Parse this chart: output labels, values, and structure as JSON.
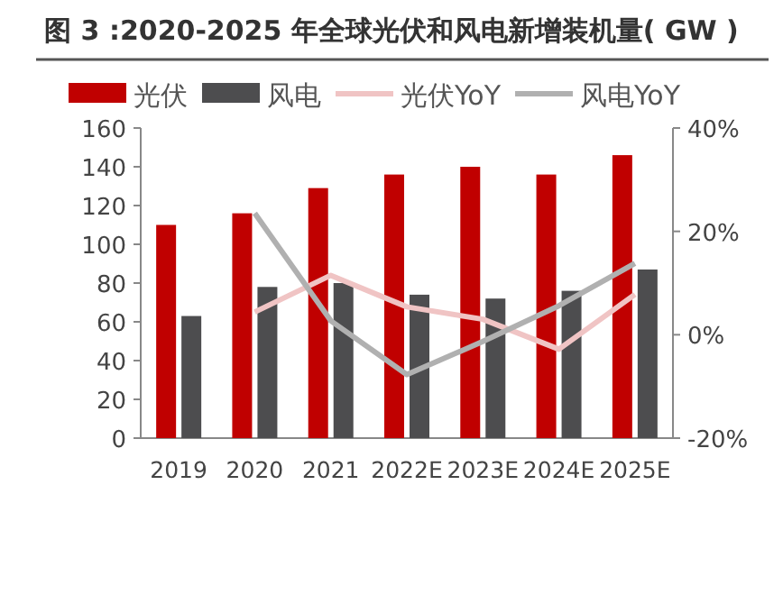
{
  "chart_data": {
    "type": "bar",
    "title": "图 3 :2020-2025 年全球光伏和风电新增装机量( GW )",
    "categories": [
      "2019",
      "2020",
      "2021",
      "2022E",
      "2023E",
      "2024E",
      "2025E"
    ],
    "series": [
      {
        "name": "光伏",
        "color": "#c00000",
        "values": [
          110,
          116,
          129,
          136,
          140,
          136,
          146
        ]
      },
      {
        "name": "风电",
        "color": "#4d4d4f",
        "values": [
          63,
          78,
          80,
          74,
          72,
          76,
          87
        ]
      },
      {
        "name": "光伏YoY",
        "type": "line",
        "axis": "y2",
        "color": "#f0c4c4",
        "values": [
          null,
          4.4,
          11.5,
          5.4,
          3,
          -2.8,
          7.8
        ]
      },
      {
        "name": "风电YoY",
        "type": "line",
        "axis": "y2",
        "color": "#b0b0b0",
        "values": [
          null,
          23.5,
          2.7,
          -7.7,
          -1.3,
          5.6,
          13.8
        ]
      }
    ],
    "ylim": [
      0,
      160
    ],
    "yticks": [
      0,
      20,
      40,
      60,
      80,
      100,
      120,
      140,
      160
    ],
    "y2lim": [
      -20,
      40
    ],
    "y2ticks": [
      {
        "value": -20,
        "label": "-20%"
      },
      {
        "value": 0,
        "label": "0%"
      },
      {
        "value": 20,
        "label": "20%"
      },
      {
        "value": 40,
        "label": "40%"
      }
    ],
    "legend": "top"
  }
}
